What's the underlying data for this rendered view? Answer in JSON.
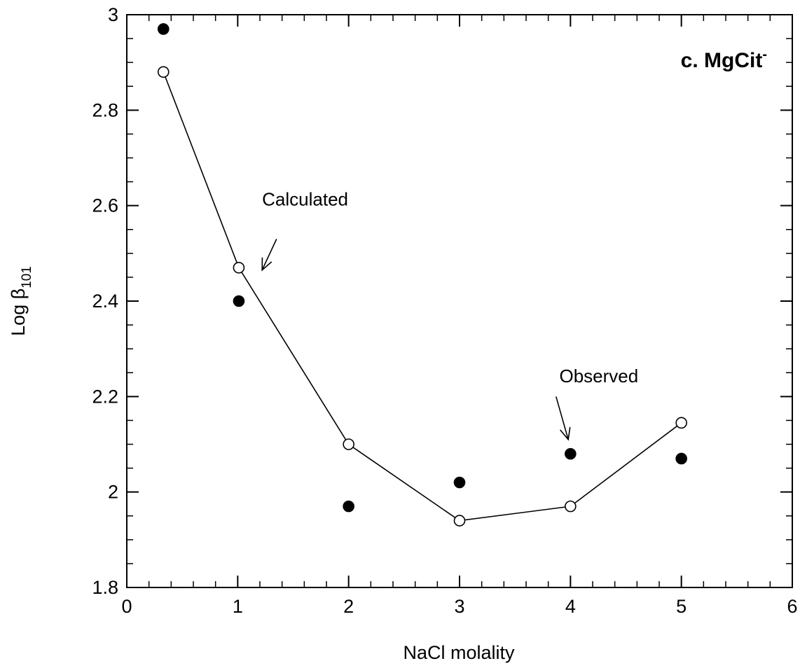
{
  "chart_data": {
    "type": "scatter",
    "panel_label": "c.  MgCit",
    "panel_label_sup": "-",
    "xlabel": "NaCl molality",
    "ylabel_main": "Log β",
    "ylabel_sub": "101",
    "xlim": [
      0,
      6
    ],
    "ylim": [
      1.8,
      3.0
    ],
    "x_ticks": [
      0,
      1,
      2,
      3,
      4,
      5,
      6
    ],
    "x_tick_labels": [
      "0",
      "1",
      "2",
      "3",
      "4",
      "5",
      "6"
    ],
    "x_minor_step": 0.2,
    "y_ticks": [
      1.8,
      2.0,
      2.2,
      2.4,
      2.6,
      2.8,
      3.0
    ],
    "y_tick_labels": [
      "1.8",
      "2",
      "2.2",
      "2.4",
      "2.6",
      "2.8",
      "3"
    ],
    "y_minor_step": 0.05,
    "grid": false,
    "series": [
      {
        "role": "calculated",
        "marker": "open-circle",
        "connected": true,
        "x": [
          0.33,
          1.01,
          2.0,
          3.0,
          4.0,
          5.0
        ],
        "y": [
          2.88,
          2.47,
          2.1,
          1.94,
          1.97,
          2.145
        ]
      },
      {
        "role": "observed",
        "marker": "filled-circle",
        "connected": false,
        "x": [
          0.33,
          1.01,
          2.0,
          3.0,
          4.0,
          5.0
        ],
        "y": [
          2.97,
          2.4,
          1.97,
          2.02,
          2.08,
          2.07
        ]
      }
    ],
    "annotations": [
      {
        "text": "Calculated",
        "text_at": [
          1.22,
          2.6
        ],
        "arrow_from": [
          1.35,
          2.53
        ],
        "arrow_to": [
          1.22,
          2.465
        ]
      },
      {
        "text": "Observed",
        "text_at": [
          3.9,
          2.23
        ],
        "arrow_from": [
          3.87,
          2.2
        ],
        "arrow_to": [
          3.98,
          2.11
        ]
      }
    ]
  }
}
